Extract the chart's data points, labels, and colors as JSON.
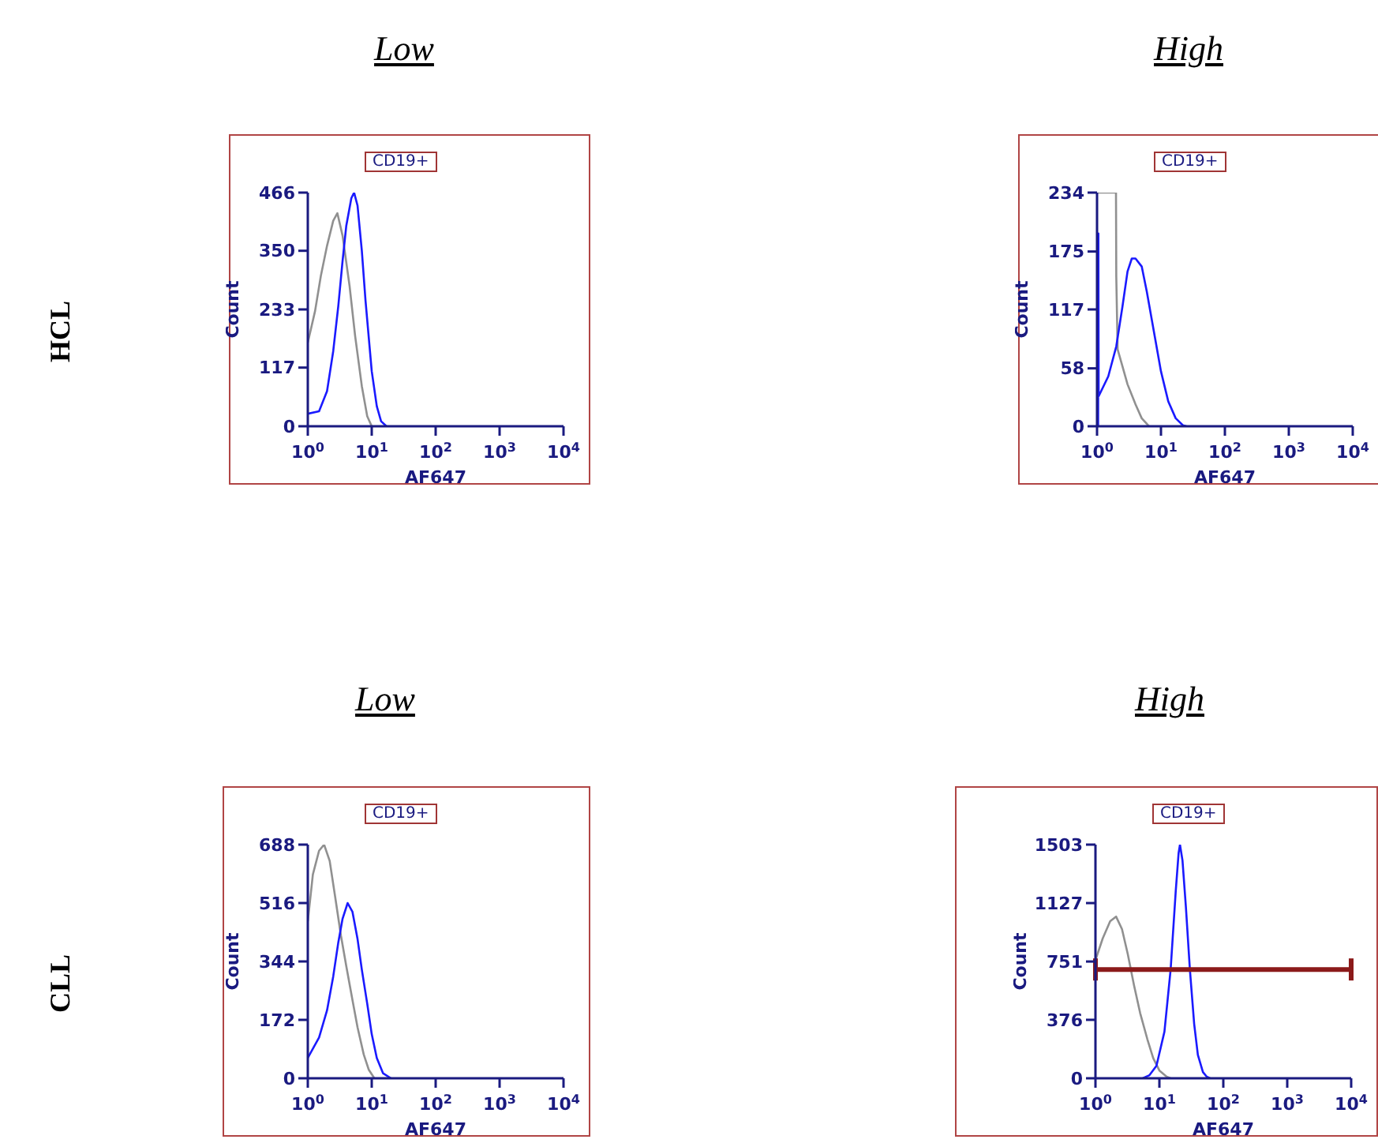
{
  "chart_data": [
    {
      "type": "line",
      "title": "Low",
      "subtitle": "CD19+",
      "annotations": [
        "HCL"
      ],
      "xlabel": "AF647",
      "ylabel": "Count",
      "log": "x",
      "xlim": [
        1,
        10000
      ],
      "xticks": [
        {
          "value": 1,
          "label": "10$^{0}$"
        },
        {
          "value": 10,
          "label": "10$^{1}$"
        },
        {
          "value": 100,
          "label": "10$^{2}$"
        },
        {
          "value": 1000,
          "label": "10$^{3}$"
        },
        {
          "value": 10000,
          "label": "10$^{4}$"
        }
      ],
      "ylim": [
        0,
        466
      ],
      "yticks": [
        0,
        117,
        233,
        350,
        466
      ],
      "marker": "none",
      "series": [
        {
          "color": "#909090",
          "x": [
            1,
            1.3,
            1.6,
            2,
            2.5,
            2.9,
            3.5,
            4.5,
            5.5,
            7,
            8.5,
            10
          ],
          "values": [
            167,
            230,
            300,
            360,
            410,
            425,
            380,
            280,
            180,
            80,
            20,
            0
          ]
        },
        {
          "color": "#1a1aff",
          "x": [
            1,
            1.5,
            2,
            2.5,
            3,
            3.5,
            4,
            4.8,
            5.3,
            6,
            7,
            8,
            10,
            12,
            14,
            17
          ],
          "values": [
            25,
            30,
            70,
            150,
            240,
            330,
            400,
            455,
            466,
            440,
            350,
            250,
            110,
            40,
            10,
            0
          ]
        }
      ]
    },
    {
      "type": "line",
      "title": "High",
      "subtitle": "CD19+",
      "xlabel": "AF647",
      "ylabel": "Count",
      "log": "x",
      "xlim": [
        1,
        10000
      ],
      "xticks": [
        {
          "value": 1,
          "label": "10$^{0}$"
        },
        {
          "value": 10,
          "label": "10$^{1}$"
        },
        {
          "value": 100,
          "label": "10$^{2}$"
        },
        {
          "value": 1000,
          "label": "10$^{3}$"
        },
        {
          "value": 10000,
          "label": "10$^{4}$"
        }
      ],
      "ylim": [
        0,
        234
      ],
      "yticks": [
        0,
        58,
        117,
        175,
        234
      ],
      "marker": "none",
      "series": [
        {
          "color": "#909090",
          "x": [
            1,
            1.98,
            2,
            2.1,
            2.5,
            3,
            4,
            5,
            6.5
          ],
          "values": [
            234,
            234,
            150,
            77,
            60,
            42,
            22,
            8,
            0
          ]
        },
        {
          "color": "#1a1aff",
          "x": [
            1.04,
            1.05,
            1.06,
            1.5,
            2,
            2.5,
            3,
            3.5,
            4,
            5,
            6,
            8,
            10,
            13,
            17,
            22,
            25
          ],
          "values": [
            0,
            193,
            30,
            50,
            80,
            120,
            155,
            168,
            168,
            160,
            135,
            90,
            55,
            25,
            8,
            1,
            0
          ]
        }
      ]
    },
    {
      "type": "line",
      "title": "Low",
      "subtitle": "CD19+",
      "annotations": [
        "CLL"
      ],
      "xlabel": "AF647",
      "ylabel": "Count",
      "log": "x",
      "xlim": [
        1,
        10000
      ],
      "xticks": [
        {
          "value": 1,
          "label": "10$^{0}$"
        },
        {
          "value": 10,
          "label": "10$^{1}$"
        },
        {
          "value": 100,
          "label": "10$^{2}$"
        },
        {
          "value": 1000,
          "label": "10$^{3}$"
        },
        {
          "value": 10000,
          "label": "10$^{4}$"
        }
      ],
      "ylim": [
        0,
        688
      ],
      "yticks": [
        0,
        172,
        344,
        516,
        688
      ],
      "marker": "none",
      "series": [
        {
          "color": "#909090",
          "x": [
            1,
            1.2,
            1.5,
            1.8,
            2.2,
            2.7,
            3.3,
            4,
            5,
            6,
            7.5,
            9,
            11
          ],
          "values": [
            462,
            600,
            670,
            688,
            640,
            530,
            420,
            330,
            230,
            150,
            70,
            25,
            0
          ]
        },
        {
          "color": "#1a1aff",
          "x": [
            1,
            1.5,
            2,
            2.5,
            3,
            3.5,
            4.2,
            5,
            6,
            7,
            8.5,
            10,
            12,
            15,
            20
          ],
          "values": [
            60,
            120,
            200,
            300,
            400,
            470,
            516,
            490,
            410,
            320,
            220,
            130,
            60,
            15,
            0
          ]
        }
      ]
    },
    {
      "type": "line",
      "title": "High",
      "subtitle": "CD19+",
      "xlabel": "AF647",
      "ylabel": "Count",
      "log": "x",
      "xlim": [
        1,
        10000
      ],
      "xticks": [
        {
          "value": 1,
          "label": "10$^{0}$"
        },
        {
          "value": 10,
          "label": "10$^{1}$"
        },
        {
          "value": 100,
          "label": "10$^{2}$"
        },
        {
          "value": 1000,
          "label": "10$^{3}$"
        },
        {
          "value": 10000,
          "label": "10$^{4}$"
        }
      ],
      "ylim": [
        0,
        1503
      ],
      "yticks": [
        0,
        376,
        751,
        1127,
        1503
      ],
      "marker": "none",
      "series": [
        {
          "color": "#909090",
          "x": [
            1,
            1.3,
            1.7,
            2.1,
            2.6,
            3.2,
            4,
            5,
            6.5,
            8,
            10,
            13,
            15
          ],
          "values": [
            760,
            900,
            1010,
            1040,
            960,
            800,
            600,
            420,
            250,
            130,
            50,
            10,
            0
          ]
        },
        {
          "color": "#1a1aff",
          "x": [
            5.5,
            7,
            9,
            12,
            15,
            18,
            20,
            21,
            23,
            26,
            30,
            35,
            40,
            48,
            55,
            62
          ],
          "values": [
            0,
            20,
            80,
            300,
            700,
            1200,
            1450,
            1503,
            1400,
            1100,
            700,
            350,
            150,
            40,
            10,
            0
          ]
        }
      ],
      "ref_lines": [
        {
          "axis": "y",
          "value": 700,
          "color": "#8b1a1a"
        }
      ]
    }
  ]
}
